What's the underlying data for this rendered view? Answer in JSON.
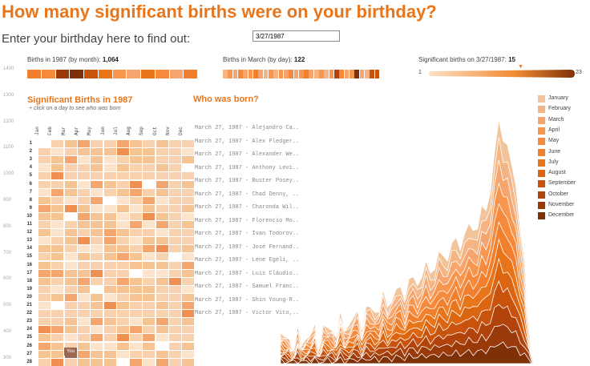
{
  "title": "How many significant births were on your birthday?",
  "prompt": "Enter your birthday here to find out:",
  "birthday_input": "3/27/1987",
  "colors": {
    "accent": "#e8751a",
    "cell_base": "#f8d7b8"
  },
  "y_axis_ticks": [
    "1400",
    "1300",
    "1200",
    "1100",
    "1000",
    "900",
    "800",
    "700",
    "600",
    "500",
    "400",
    "300"
  ],
  "stripes": {
    "by_month": {
      "label": "Births in 1987 (by month): ",
      "value": "1,064"
    },
    "by_day": {
      "label": "Births in March (by day): ",
      "value": "122"
    },
    "significant": {
      "label": "Significant births on 3/27/1987: ",
      "value": "15",
      "scale_min": "1",
      "scale_max": "23",
      "marker": "▼"
    }
  },
  "significant_panel": {
    "title": "Significant Births in 1987",
    "subtitle": "+ click on a day to see who was born",
    "months": [
      "Jan",
      "Feb",
      "Mar",
      "Apr",
      "May",
      "Jun",
      "Jul",
      "Aug",
      "Sep",
      "Oct",
      "Nov",
      "Dec"
    ],
    "days": [
      "1",
      "2",
      "3",
      "4",
      "5",
      "6",
      "7",
      "8",
      "9",
      "10",
      "11",
      "12",
      "13",
      "14",
      "15",
      "16",
      "17",
      "18",
      "19",
      "20",
      "21",
      "22",
      "23",
      "24",
      "25",
      "26",
      "27",
      "28"
    ],
    "you_label": "You"
  },
  "who_was_born": {
    "title": "Who was born?",
    "people": [
      "March 27, 1987 - Alejandro Ca..",
      "March 27, 1987 - Alex Pledger..",
      "March 27, 1987 - Alexander We..",
      "March 27, 1987 - Anthony Levi..",
      "March 27, 1987 - Buster Posey..",
      "March 27, 1987 - Chad Denny, ..",
      "March 27, 1987 - Charonda Wil..",
      "March 27, 1987 - Florencio Mo..",
      "March 27, 1987 - Ivan Todorov..",
      "March 27, 1987 - José Fernand..",
      "March 27, 1987 - Lene Egeli, ..",
      "March 27, 1987 - Luis Cláudio..",
      "March 27, 1987 - Samuel Franc..",
      "March 27, 1987 - Shin Young-R..",
      "March 27, 1987 - Victor Vito,.."
    ]
  },
  "legend": {
    "items": [
      "January",
      "February",
      "March",
      "April",
      "May",
      "June",
      "July",
      "August",
      "September",
      "October",
      "November",
      "December"
    ],
    "colors": [
      "#f2c49b",
      "#f4b483",
      "#f5a56d",
      "#f7964f",
      "#f58a3c",
      "#f07f2e",
      "#e8751a",
      "#dc6512",
      "#c9530d",
      "#b2440b",
      "#9a3909",
      "#7e3007"
    ]
  }
}
